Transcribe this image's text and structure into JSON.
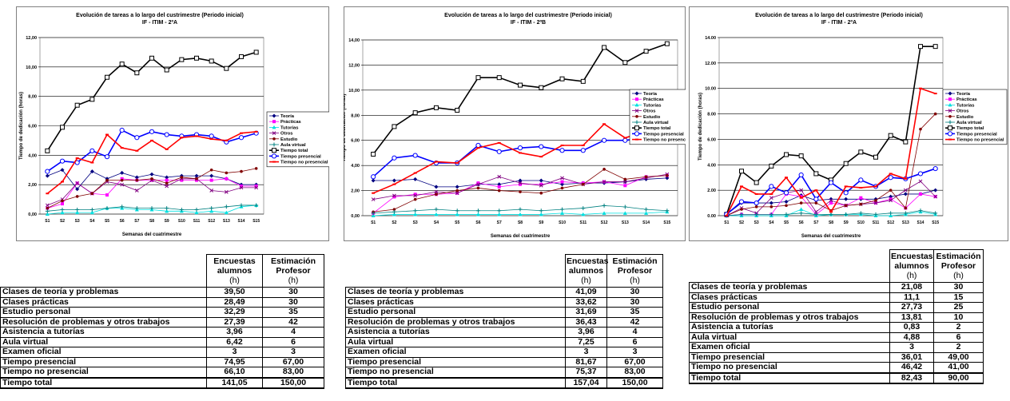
{
  "chart_data": [
    {
      "type": "line",
      "title": "Evolución de tareas a lo largo del custrimestre (Periodo inicial)",
      "subtitle": "IF - ITIM - 2ºA",
      "x_label": "Semanas del cuatrimestre",
      "y_label": "Tiempo de dedicación (horas)",
      "categories": [
        "S1",
        "S2",
        "S3",
        "S4",
        "S5",
        "S6",
        "S7",
        "S8",
        "S9",
        "S10",
        "S11",
        "S12",
        "S13",
        "S14",
        "S15"
      ],
      "ylim": [
        0,
        12
      ],
      "yticks": [
        {
          "value": 0,
          "label": "0,00"
        },
        {
          "value": 2,
          "label": "2,00"
        },
        {
          "value": 4,
          "label": "4,00"
        },
        {
          "value": 6,
          "label": "6,00"
        },
        {
          "value": 8,
          "label": "8,00"
        },
        {
          "value": 10,
          "label": "10,00"
        },
        {
          "value": 12,
          "label": "12,00"
        }
      ],
      "grid": true,
      "legend": "right",
      "series": [
        {
          "name": "Teoría",
          "color": "#000080",
          "marker": "diamond",
          "values": [
            2.6,
            3.0,
            1.7,
            2.9,
            2.4,
            2.8,
            2.5,
            2.7,
            2.5,
            2.6,
            2.6,
            2.6,
            2.4,
            2.0,
            2.0
          ]
        },
        {
          "name": "Prácticas",
          "color": "#ff00ff",
          "marker": "square",
          "values": [
            0.4,
            0.7,
            2.1,
            1.4,
            1.3,
            2.4,
            2.3,
            2.3,
            2.3,
            2.3,
            2.3,
            2.3,
            2.4,
            1.9,
            1.9
          ]
        },
        {
          "name": "Tutorías",
          "color": "#00e0e0",
          "marker": "triangle",
          "values": [
            0.0,
            0.1,
            0.1,
            0.1,
            0.4,
            0.4,
            0.3,
            0.3,
            0.2,
            0.2,
            0.1,
            0.2,
            0.1,
            0.5,
            0.6
          ]
        },
        {
          "name": "Otros",
          "color": "#800080",
          "marker": "x",
          "values": [
            0.6,
            1.0,
            2.1,
            1.4,
            2.2,
            2.0,
            1.6,
            2.3,
            1.9,
            2.4,
            2.4,
            1.6,
            1.5,
            1.8,
            1.8
          ]
        },
        {
          "name": "Estudio",
          "color": "#800000",
          "marker": "circle",
          "values": [
            0.4,
            0.9,
            1.2,
            1.4,
            2.3,
            2.3,
            2.3,
            2.4,
            2.1,
            2.5,
            2.4,
            3.0,
            2.8,
            2.9,
            3.1
          ]
        },
        {
          "name": "Aula virtual",
          "color": "#008080",
          "marker": "plus",
          "values": [
            0.2,
            0.3,
            0.3,
            0.3,
            0.4,
            0.5,
            0.4,
            0.4,
            0.4,
            0.3,
            0.3,
            0.4,
            0.5,
            0.6,
            0.6
          ]
        },
        {
          "name": "Tiempo total",
          "color": "#000000",
          "marker": "square-open",
          "values": [
            4.3,
            5.9,
            7.4,
            7.8,
            9.3,
            10.2,
            9.6,
            10.6,
            9.8,
            10.5,
            10.6,
            10.4,
            9.9,
            10.7,
            11.0
          ]
        },
        {
          "name": "Tiempo presencial",
          "color": "#0000ff",
          "marker": "circle-open",
          "values": [
            2.9,
            3.6,
            3.5,
            4.3,
            3.9,
            5.7,
            5.2,
            5.6,
            5.4,
            5.3,
            5.4,
            5.3,
            4.9,
            5.2,
            5.5
          ]
        },
        {
          "name": "Tiempo no presencial",
          "color": "#ff0000",
          "marker": "dash",
          "values": [
            1.4,
            2.2,
            3.8,
            3.5,
            5.4,
            4.5,
            4.3,
            5.0,
            4.4,
            5.2,
            5.3,
            5.1,
            5.0,
            5.5,
            5.6
          ]
        }
      ]
    },
    {
      "type": "line",
      "title": "Evolución de tareas a lo largo del custrimestre (Periodo inicial)",
      "subtitle": "IF - ITIM - 2ºB",
      "x_label": "Semanas del cuatrimestre",
      "y_label": "Tiempo de dedicación (horas)",
      "categories": [
        "S1",
        "S2",
        "S3",
        "S4",
        "S5",
        "S6",
        "S7",
        "S8",
        "S9",
        "S10",
        "S11",
        "S12",
        "S13",
        "S14",
        "S15"
      ],
      "ylim": [
        0,
        14
      ],
      "yticks": [
        {
          "value": 0,
          "label": "0,00"
        },
        {
          "value": 2,
          "label": "2,00"
        },
        {
          "value": 4,
          "label": "4,00"
        },
        {
          "value": 6,
          "label": "6,00"
        },
        {
          "value": 8,
          "label": "8,00"
        },
        {
          "value": 10,
          "label": "10,00"
        },
        {
          "value": 12,
          "label": "12,00"
        },
        {
          "value": 14,
          "label": "14,00"
        }
      ],
      "grid": true,
      "legend": "right",
      "series": [
        {
          "name": "Teoría",
          "color": "#000080",
          "marker": "diamond",
          "values": [
            2.8,
            2.8,
            2.9,
            2.3,
            2.3,
            2.5,
            2.5,
            2.8,
            2.8,
            2.5,
            2.6,
            2.6,
            2.7,
            2.9,
            3.0
          ]
        },
        {
          "name": "Prácticas",
          "color": "#ff00ff",
          "marker": "square",
          "values": [
            0.2,
            1.5,
            1.7,
            1.7,
            1.8,
            2.6,
            2.3,
            2.5,
            2.5,
            2.7,
            2.6,
            2.7,
            2.4,
            3.1,
            3.2
          ]
        },
        {
          "name": "Tutorías",
          "color": "#00e0e0",
          "marker": "triangle",
          "values": [
            0.0,
            0.1,
            0.1,
            0.1,
            0.1,
            0.1,
            0.1,
            0.1,
            0.1,
            0.2,
            0.1,
            0.2,
            0.2,
            0.2,
            0.3
          ]
        },
        {
          "name": "Otros",
          "color": "#800080",
          "marker": "x",
          "values": [
            1.3,
            1.6,
            1.6,
            1.9,
            1.8,
            2.5,
            3.1,
            2.6,
            2.4,
            3.0,
            2.5,
            2.7,
            2.7,
            3.0,
            3.3
          ]
        },
        {
          "name": "Estudio",
          "color": "#800000",
          "marker": "circle",
          "values": [
            0.3,
            0.5,
            1.3,
            1.7,
            2.0,
            2.2,
            2.0,
            1.9,
            1.8,
            2.2,
            2.5,
            3.7,
            2.9,
            3.1,
            3.2
          ]
        },
        {
          "name": "Aula virtual",
          "color": "#008080",
          "marker": "plus",
          "values": [
            0.2,
            0.3,
            0.4,
            0.5,
            0.4,
            0.4,
            0.4,
            0.5,
            0.4,
            0.5,
            0.6,
            0.8,
            0.7,
            0.5,
            0.4
          ]
        },
        {
          "name": "Tiempo total",
          "color": "#000000",
          "marker": "square-open",
          "values": [
            4.9,
            7.1,
            8.2,
            8.6,
            8.4,
            11.0,
            11.0,
            10.4,
            10.2,
            10.9,
            10.7,
            13.4,
            12.2,
            13.1,
            13.7
          ]
        },
        {
          "name": "Tiempo presencial",
          "color": "#0000ff",
          "marker": "circle-open",
          "values": [
            3.1,
            4.6,
            4.8,
            4.2,
            4.2,
            5.6,
            5.1,
            5.4,
            5.5,
            5.2,
            5.2,
            6.0,
            6.0,
            6.2,
            6.6
          ]
        },
        {
          "name": "Tiempo no presencial",
          "color": "#ff0000",
          "marker": "dash",
          "values": [
            1.8,
            2.5,
            3.4,
            4.3,
            4.2,
            5.4,
            5.8,
            5.0,
            4.7,
            5.6,
            5.6,
            7.3,
            6.2,
            6.7,
            7.0
          ]
        }
      ]
    },
    {
      "type": "line",
      "title": "Evolución de tareas a lo largo del custrimestre (Periodo inicial)",
      "subtitle": "IF - ITIM - 2ºA",
      "x_label": "Semanas del cuatrimestre",
      "y_label": "Tiempo de dedicación (horas)",
      "categories": [
        "S1",
        "S2",
        "S3",
        "S4",
        "S5",
        "S6",
        "S7",
        "S8",
        "S9",
        "S10",
        "S11",
        "S12",
        "S13",
        "S14",
        "S15"
      ],
      "ylim": [
        0,
        14
      ],
      "yticks": [
        {
          "value": 0,
          "label": "0.00"
        },
        {
          "value": 2,
          "label": "2.00"
        },
        {
          "value": 4,
          "label": "4.00"
        },
        {
          "value": 6,
          "label": "6.00"
        },
        {
          "value": 8,
          "label": "8.00"
        },
        {
          "value": 10,
          "label": "10.00"
        },
        {
          "value": 12,
          "label": "12.00"
        },
        {
          "value": 14,
          "label": "14.00"
        }
      ],
      "grid": true,
      "legend": "right",
      "series": [
        {
          "name": "Teoría",
          "color": "#000080",
          "marker": "diamond",
          "values": [
            0.1,
            1.0,
            1.0,
            1.0,
            1.1,
            1.6,
            1.2,
            1.3,
            1.3,
            1.3,
            1.3,
            1.5,
            1.7,
            1.7,
            2.0
          ]
        },
        {
          "name": "Prácticas",
          "color": "#ff00ff",
          "marker": "square",
          "values": [
            0.0,
            0.1,
            0.1,
            0.1,
            1.7,
            1.5,
            0.1,
            1.0,
            0.8,
            1.4,
            1.0,
            1.3,
            0.6,
            1.7,
            1.5
          ]
        },
        {
          "name": "Tutorías",
          "color": "#00e0e0",
          "marker": "triangle",
          "values": [
            0.0,
            0.0,
            0.0,
            0.0,
            0.0,
            0.5,
            0.0,
            0.1,
            0.1,
            0.1,
            0.0,
            0.0,
            0.1,
            0.3,
            0.1
          ]
        },
        {
          "name": "Otros",
          "color": "#800080",
          "marker": "x",
          "values": [
            0.0,
            0.6,
            0.2,
            1.4,
            1.8,
            2.0,
            0.3,
            1.2,
            0.8,
            0.9,
            1.0,
            1.2,
            2.0,
            2.7,
            1.5
          ]
        },
        {
          "name": "Estudio",
          "color": "#800000",
          "marker": "circle",
          "values": [
            0.0,
            0.5,
            0.7,
            0.7,
            0.8,
            1.0,
            1.0,
            0.4,
            0.8,
            0.9,
            1.2,
            2.0,
            0.6,
            6.8,
            8.0
          ]
        },
        {
          "name": "Aula virtual",
          "color": "#008080",
          "marker": "plus",
          "values": [
            0.0,
            0.1,
            0.1,
            0.1,
            0.1,
            0.2,
            0.1,
            0.1,
            0.1,
            0.2,
            0.1,
            0.2,
            0.2,
            0.4,
            0.2
          ]
        },
        {
          "name": "Tiempo total",
          "color": "#000000",
          "marker": "square-open",
          "values": [
            0.1,
            3.5,
            2.6,
            3.9,
            4.8,
            4.7,
            3.3,
            2.8,
            4.1,
            5.0,
            4.6,
            6.3,
            5.8,
            13.3,
            13.3
          ]
        },
        {
          "name": "Tiempo presencial",
          "color": "#0000ff",
          "marker": "circle-open",
          "values": [
            0.1,
            1.1,
            1.0,
            2.3,
            1.8,
            3.2,
            1.3,
            2.6,
            1.8,
            2.8,
            2.3,
            3.0,
            2.9,
            3.3,
            3.7
          ]
        },
        {
          "name": "Tiempo no presencial",
          "color": "#ff0000",
          "marker": "dash",
          "values": [
            0.0,
            2.3,
            1.7,
            1.7,
            3.0,
            1.4,
            2.0,
            0.3,
            2.3,
            2.2,
            2.3,
            3.3,
            2.9,
            10.0,
            9.6
          ]
        }
      ]
    }
  ],
  "tables": [
    {
      "header": [
        [
          "Encuestas",
          "alumnos",
          "(h)"
        ],
        [
          "Estimación",
          "Profesor",
          "(h)"
        ]
      ],
      "rows": [
        [
          "Clases de teoría y problemas",
          "39,50",
          "30"
        ],
        [
          "Clases prácticas",
          "28,49",
          "30"
        ],
        [
          "Estudio personal",
          "32,29",
          "35"
        ],
        [
          "Resolución de problemas y otros trabajos",
          "27,39",
          "42"
        ],
        [
          "Asistencia a tutorías",
          "3,96",
          "4"
        ],
        [
          "Aula virtual",
          "6,42",
          "6"
        ],
        [
          "Examen oficial",
          "3",
          "3"
        ],
        [
          "Tiempo presencial",
          "74,95",
          "67,00"
        ],
        [
          "Tiempo no presencial",
          "66,10",
          "83,00"
        ],
        [
          "Tiempo total",
          "141,05",
          "150,00"
        ]
      ]
    },
    {
      "header": [
        [
          "Encuestas",
          "alumnos",
          "(h)"
        ],
        [
          "Estimación",
          "Profesor",
          "(h)"
        ]
      ],
      "rows": [
        [
          "Clases de teoría y problemas",
          "41,09",
          "30"
        ],
        [
          "Clases prácticas",
          "33,62",
          "30"
        ],
        [
          "Estudio personal",
          "31,69",
          "35"
        ],
        [
          "Resolución de problemas y otros trabajos",
          "36,43",
          "42"
        ],
        [
          "Asistencia a tutorías",
          "3,96",
          "4"
        ],
        [
          "Aula virtual",
          "7,25",
          "6"
        ],
        [
          "Examen oficial",
          "3",
          "3"
        ],
        [
          "Tiempo presencial",
          "81,67",
          "67,00"
        ],
        [
          "Tiempo no presencial",
          "75,37",
          "83,00"
        ],
        [
          "Tiempo total",
          "157,04",
          "150,00"
        ]
      ]
    },
    {
      "header": [
        [
          "Encuestas",
          "alumnos",
          "(h)"
        ],
        [
          "Estimación",
          "Profesor",
          "(h)"
        ]
      ],
      "rows": [
        [
          "Clases de teoría y problemas",
          "21,08",
          "30"
        ],
        [
          "Clases prácticas",
          "11,1",
          "15"
        ],
        [
          "Estudio personal",
          "27,73",
          "25"
        ],
        [
          "Resolución de problemas y otros trabajos",
          "13,81",
          "10"
        ],
        [
          "Asistencia a tutorías",
          "0,83",
          "2"
        ],
        [
          "Aula virtual",
          "4,88",
          "6"
        ],
        [
          "Examen oficial",
          "3",
          "2"
        ],
        [
          "Tiempo presencial",
          "36,01",
          "49,00"
        ],
        [
          "Tiempo no presencial",
          "46,42",
          "41,00"
        ],
        [
          "Tiempo total",
          "82,43",
          "90,00"
        ]
      ]
    }
  ]
}
